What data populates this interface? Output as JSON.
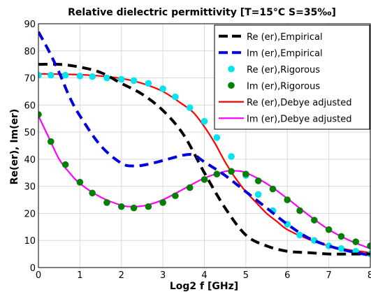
{
  "chart_data": {
    "type": "line",
    "title": "Relative dielectric permittivity [T=15°C  S=35‰]",
    "xlabel": "Log2 f [GHz]",
    "ylabel": "Re(er), Im(er)",
    "xlim": [
      0,
      8
    ],
    "ylim": [
      0,
      90
    ],
    "x_ticks": [
      0,
      1,
      2,
      3,
      4,
      5,
      6,
      7,
      8
    ],
    "y_ticks": [
      0,
      10,
      20,
      30,
      40,
      50,
      60,
      70,
      80,
      90
    ],
    "grid": true,
    "legend_position": "top-right",
    "series": [
      {
        "name": "Re (er),Empirical",
        "style": "dashed",
        "color": "#000000",
        "x": [
          0,
          0.5,
          1,
          1.5,
          2,
          2.5,
          3,
          3.5,
          4,
          4.5,
          5,
          5.5,
          6,
          6.5,
          7,
          7.5,
          8
        ],
        "y": [
          75,
          75,
          74,
          72,
          68,
          64,
          58,
          49,
          35,
          22,
          12,
          8,
          6,
          5.5,
          5,
          5,
          5
        ]
      },
      {
        "name": "Im (er),Empirical",
        "style": "dashed",
        "color": "#0000dd",
        "x": [
          0,
          0.25,
          0.5,
          0.75,
          1,
          1.5,
          2,
          2.3,
          2.6,
          3,
          3.5,
          3.75,
          4,
          4.5,
          5,
          5.5,
          6,
          6.5,
          7,
          7.5,
          8
        ],
        "y": [
          87,
          80,
          72,
          63,
          56,
          45,
          38.5,
          37.5,
          38,
          39.5,
          41.5,
          41.5,
          39,
          34,
          28,
          22,
          16,
          11,
          8,
          6,
          4.5
        ]
      },
      {
        "name": "Re (er),Rigorous",
        "style": "markers",
        "color": "#00e5ee",
        "x": [
          0,
          0.3,
          0.65,
          1,
          1.3,
          1.65,
          2,
          2.3,
          2.65,
          3,
          3.3,
          3.65,
          4,
          4.3,
          4.65,
          5,
          5.3,
          5.65,
          6,
          6.3,
          6.65,
          7,
          7.3,
          7.65,
          8
        ],
        "y": [
          71,
          71,
          71,
          70.7,
          70.5,
          70,
          69.5,
          69,
          68,
          66,
          63,
          59,
          54,
          48,
          41,
          34,
          27,
          21,
          16,
          12,
          10,
          8,
          7,
          6,
          5
        ]
      },
      {
        "name": "Im (er),Rigorous",
        "style": "markers",
        "color": "#008000",
        "x": [
          0,
          0.3,
          0.65,
          1,
          1.3,
          1.65,
          2,
          2.3,
          2.65,
          3,
          3.3,
          3.65,
          4,
          4.3,
          4.65,
          5,
          5.3,
          5.65,
          6,
          6.3,
          6.65,
          7,
          7.3,
          7.65,
          8
        ],
        "y": [
          56.5,
          46.5,
          38,
          31.5,
          27.5,
          24,
          22.5,
          22,
          22.5,
          24,
          26.5,
          29.5,
          32.5,
          34.5,
          35.5,
          34.5,
          32,
          29,
          25,
          21,
          17.5,
          14,
          11.5,
          9.5,
          8
        ]
      },
      {
        "name": "Re (er),Debye adjusted",
        "style": "solid",
        "color": "#ff0000",
        "x": [
          0,
          0.5,
          1,
          1.5,
          2,
          2.5,
          3,
          3.5,
          3.75,
          4,
          4.25,
          4.5,
          4.75,
          5,
          5.25,
          5.5,
          5.75,
          6,
          6.5,
          7,
          7.5,
          8
        ],
        "y": [
          71.5,
          71.4,
          71.2,
          70.7,
          69.8,
          68,
          65,
          60,
          57,
          52,
          46,
          39,
          33,
          28,
          24,
          20,
          17,
          14,
          10.5,
          8,
          6.5,
          5.5
        ]
      },
      {
        "name": "Im (er),Debye adjusted",
        "style": "solid",
        "color": "#ff00ff",
        "x": [
          0,
          0.25,
          0.5,
          0.75,
          1,
          1.5,
          2,
          2.3,
          2.6,
          3,
          3.5,
          4,
          4.5,
          4.75,
          5,
          5.5,
          6,
          6.5,
          7,
          7.5,
          8
        ],
        "y": [
          56,
          48,
          40,
          35,
          31,
          26,
          23,
          22.5,
          23,
          25,
          29,
          33,
          35.5,
          35.7,
          35,
          31,
          25.5,
          19.5,
          14,
          10,
          7
        ]
      }
    ]
  }
}
